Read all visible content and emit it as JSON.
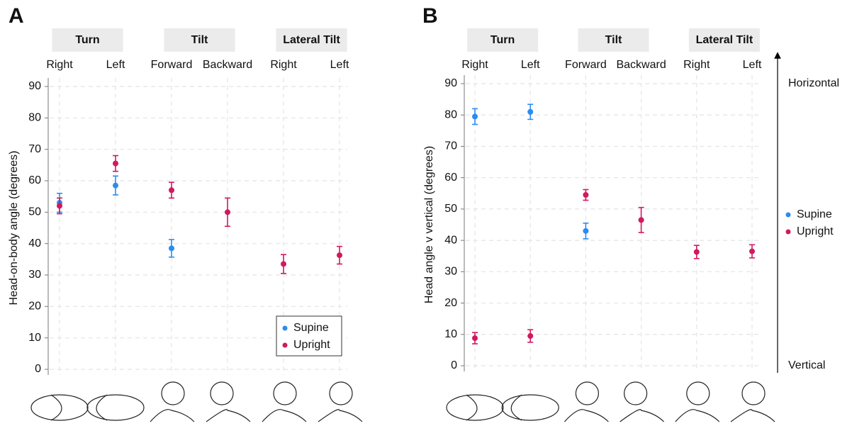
{
  "chart_data": [
    {
      "type": "errorbar",
      "panel_label": "A",
      "groups": [
        "Turn",
        "Tilt",
        "Lateral Tilt"
      ],
      "categories": [
        "Right",
        "Left",
        "Forward",
        "Backward",
        "Right",
        "Left"
      ],
      "ylabel": "Head-on-body angle (degrees)",
      "ylim": [
        0,
        90
      ],
      "yticks": [
        0,
        10,
        20,
        30,
        40,
        50,
        60,
        70,
        80,
        90
      ],
      "grid": true,
      "legend": "lower right",
      "series": [
        {
          "name": "Supine",
          "color": "#2b8cf0",
          "values": [
            53,
            58.5,
            38.5,
            null,
            null,
            null
          ],
          "errors": [
            3,
            3,
            2.8,
            null,
            null,
            null
          ]
        },
        {
          "name": "Upright",
          "color": "#d1195e",
          "values": [
            52,
            65.5,
            57,
            50,
            33.5,
            36.3
          ],
          "errors": [
            2.5,
            2.5,
            2.5,
            4.5,
            3,
            2.8
          ]
        }
      ]
    },
    {
      "type": "errorbar",
      "panel_label": "B",
      "groups": [
        "Turn",
        "Tilt",
        "Lateral Tilt"
      ],
      "categories": [
        "Right",
        "Left",
        "Forward",
        "Backward",
        "Right",
        "Left"
      ],
      "ylabel": "Head angle v vertical (degrees)",
      "ylim": [
        0,
        90
      ],
      "yticks": [
        0,
        10,
        20,
        30,
        40,
        50,
        60,
        70,
        80,
        90
      ],
      "grid": true,
      "legend": "right outside",
      "annotations": [
        "Horizontal",
        "Vertical"
      ],
      "series": [
        {
          "name": "Supine",
          "color": "#2b8cf0",
          "values": [
            79.5,
            81,
            43,
            null,
            null,
            null
          ],
          "errors": [
            2.5,
            2.4,
            2.5,
            null,
            null,
            null
          ]
        },
        {
          "name": "Upright",
          "color": "#d1195e",
          "values": [
            8.8,
            9.5,
            54.5,
            46.5,
            36.3,
            36.5
          ],
          "errors": [
            1.8,
            2,
            1.7,
            4,
            2.1,
            2.1
          ]
        }
      ]
    }
  ]
}
